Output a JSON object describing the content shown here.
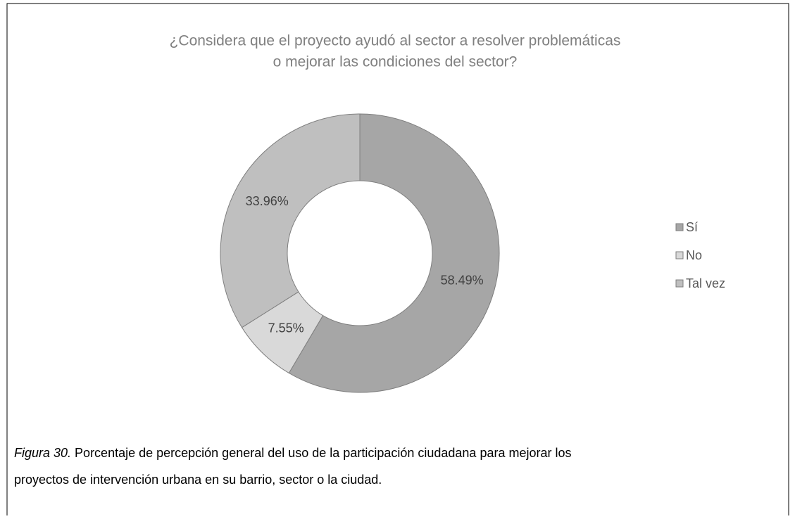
{
  "chart_data": {
    "type": "donut",
    "title": [
      "¿Considera que el proyecto ayudó al sector a resolver problemáticas",
      "o mejorar las condiciones del sector?"
    ],
    "categories": [
      "Sí",
      "No",
      "Tal vez"
    ],
    "values": [
      58.49,
      7.55,
      33.96
    ],
    "value_labels": [
      "58.49%",
      "7.55%",
      "33.96%"
    ],
    "colors": [
      "#a6a6a6",
      "#d9d9d9",
      "#bfbfbf"
    ],
    "legend": "right"
  },
  "caption": {
    "label": "Figura 30.",
    "text_line1": " Porcentaje de percepción general del uso de la participación ciudadana para mejorar los",
    "text_line2": "proyectos de intervención urbana en su barrio, sector o la ciudad."
  }
}
